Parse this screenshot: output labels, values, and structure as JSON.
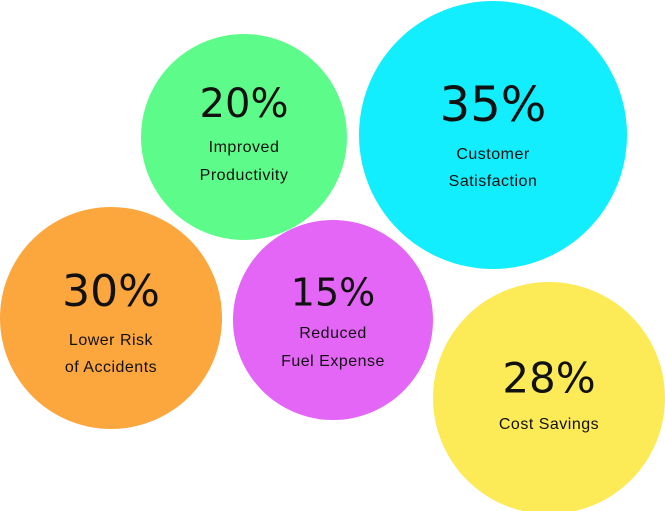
{
  "items": [
    {
      "value": "20%",
      "lines": [
        "Improved",
        "Productivity"
      ],
      "color": "#5dfc8a"
    },
    {
      "value": "35%",
      "lines": [
        "Customer",
        "Satisfaction"
      ],
      "color": "#12eefe"
    },
    {
      "value": "30%",
      "lines": [
        "Lower Risk",
        "of Accidents"
      ],
      "color": "#fca63e"
    },
    {
      "value": "15%",
      "lines": [
        "Reduced",
        "Fuel Expense"
      ],
      "color": "#e466f7"
    },
    {
      "value": "28%",
      "lines": [
        "Cost Savings"
      ],
      "color": "#fcea57"
    }
  ]
}
